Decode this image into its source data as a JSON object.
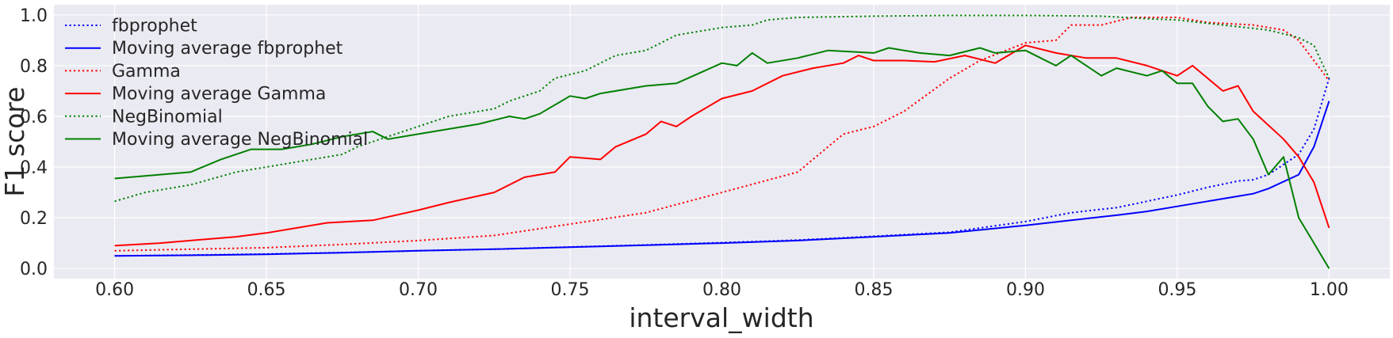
{
  "chart_data": {
    "type": "line",
    "title": "",
    "xlabel": "interval_width",
    "ylabel": "F1 score",
    "xlim": [
      0.58,
      1.02
    ],
    "ylim": [
      -0.04,
      1.04
    ],
    "grid": true,
    "legend_placement": "top-left",
    "xticks": [
      0.6,
      0.65,
      0.7,
      0.75,
      0.8,
      0.85,
      0.9,
      0.95,
      1.0
    ],
    "xtick_labels": [
      "0.60",
      "0.65",
      "0.70",
      "0.75",
      "0.80",
      "0.85",
      "0.90",
      "0.95",
      "1.00"
    ],
    "yticks": [
      0.0,
      0.2,
      0.4,
      0.6,
      0.8,
      1.0
    ],
    "ytick_labels": [
      "0.0",
      "0.2",
      "0.4",
      "0.6",
      "0.8",
      "1.0"
    ],
    "colors": {
      "background": "#eaeaf2",
      "grid": "#ffffff",
      "blue": "#0000ff",
      "red": "#ff0000",
      "green": "#008000"
    },
    "series": [
      {
        "name": "fbprophet",
        "color": "#0000ff",
        "style": "dotted",
        "points": [
          [
            0.6,
            0.05
          ],
          [
            0.625,
            0.053
          ],
          [
            0.65,
            0.057
          ],
          [
            0.675,
            0.063
          ],
          [
            0.7,
            0.07
          ],
          [
            0.725,
            0.076
          ],
          [
            0.75,
            0.085
          ],
          [
            0.775,
            0.093
          ],
          [
            0.8,
            0.102
          ],
          [
            0.825,
            0.112
          ],
          [
            0.85,
            0.127
          ],
          [
            0.875,
            0.143
          ],
          [
            0.9,
            0.185
          ],
          [
            0.915,
            0.22
          ],
          [
            0.93,
            0.24
          ],
          [
            0.94,
            0.265
          ],
          [
            0.95,
            0.29
          ],
          [
            0.96,
            0.32
          ],
          [
            0.97,
            0.345
          ],
          [
            0.975,
            0.35
          ],
          [
            0.98,
            0.37
          ],
          [
            0.99,
            0.45
          ],
          [
            0.995,
            0.55
          ],
          [
            1.0,
            0.75
          ]
        ]
      },
      {
        "name": "Moving average fbprophet",
        "color": "#0000ff",
        "style": "solid",
        "points": [
          [
            0.6,
            0.05
          ],
          [
            0.625,
            0.052
          ],
          [
            0.65,
            0.056
          ],
          [
            0.675,
            0.062
          ],
          [
            0.7,
            0.07
          ],
          [
            0.725,
            0.076
          ],
          [
            0.75,
            0.084
          ],
          [
            0.775,
            0.092
          ],
          [
            0.8,
            0.1
          ],
          [
            0.825,
            0.11
          ],
          [
            0.85,
            0.125
          ],
          [
            0.875,
            0.14
          ],
          [
            0.9,
            0.17
          ],
          [
            0.915,
            0.19
          ],
          [
            0.93,
            0.21
          ],
          [
            0.94,
            0.225
          ],
          [
            0.95,
            0.245
          ],
          [
            0.96,
            0.265
          ],
          [
            0.97,
            0.285
          ],
          [
            0.975,
            0.295
          ],
          [
            0.98,
            0.315
          ],
          [
            0.99,
            0.37
          ],
          [
            0.995,
            0.48
          ],
          [
            1.0,
            0.66
          ]
        ]
      },
      {
        "name": "Gamma",
        "color": "#ff0000",
        "style": "dotted",
        "points": [
          [
            0.6,
            0.07
          ],
          [
            0.625,
            0.076
          ],
          [
            0.65,
            0.082
          ],
          [
            0.675,
            0.095
          ],
          [
            0.7,
            0.11
          ],
          [
            0.725,
            0.13
          ],
          [
            0.75,
            0.175
          ],
          [
            0.775,
            0.22
          ],
          [
            0.8,
            0.3
          ],
          [
            0.825,
            0.38
          ],
          [
            0.84,
            0.53
          ],
          [
            0.85,
            0.56
          ],
          [
            0.86,
            0.62
          ],
          [
            0.875,
            0.75
          ],
          [
            0.885,
            0.82
          ],
          [
            0.9,
            0.89
          ],
          [
            0.91,
            0.9
          ],
          [
            0.915,
            0.96
          ],
          [
            0.925,
            0.96
          ],
          [
            0.935,
            0.99
          ],
          [
            0.95,
            0.99
          ],
          [
            0.96,
            0.97
          ],
          [
            0.975,
            0.96
          ],
          [
            0.985,
            0.94
          ],
          [
            0.99,
            0.9
          ],
          [
            1.0,
            0.74
          ]
        ]
      },
      {
        "name": "Moving average Gamma",
        "color": "#ff0000",
        "style": "solid",
        "points": [
          [
            0.6,
            0.09
          ],
          [
            0.615,
            0.1
          ],
          [
            0.625,
            0.11
          ],
          [
            0.64,
            0.125
          ],
          [
            0.65,
            0.14
          ],
          [
            0.66,
            0.16
          ],
          [
            0.67,
            0.18
          ],
          [
            0.685,
            0.19
          ],
          [
            0.7,
            0.23
          ],
          [
            0.71,
            0.26
          ],
          [
            0.725,
            0.3
          ],
          [
            0.735,
            0.36
          ],
          [
            0.745,
            0.38
          ],
          [
            0.75,
            0.44
          ],
          [
            0.76,
            0.43
          ],
          [
            0.765,
            0.48
          ],
          [
            0.775,
            0.53
          ],
          [
            0.78,
            0.58
          ],
          [
            0.785,
            0.56
          ],
          [
            0.79,
            0.6
          ],
          [
            0.8,
            0.67
          ],
          [
            0.81,
            0.7
          ],
          [
            0.82,
            0.76
          ],
          [
            0.83,
            0.79
          ],
          [
            0.84,
            0.81
          ],
          [
            0.845,
            0.84
          ],
          [
            0.85,
            0.82
          ],
          [
            0.86,
            0.82
          ],
          [
            0.87,
            0.815
          ],
          [
            0.88,
            0.84
          ],
          [
            0.89,
            0.81
          ],
          [
            0.9,
            0.88
          ],
          [
            0.91,
            0.85
          ],
          [
            0.92,
            0.83
          ],
          [
            0.93,
            0.83
          ],
          [
            0.94,
            0.8
          ],
          [
            0.95,
            0.76
          ],
          [
            0.955,
            0.8
          ],
          [
            0.965,
            0.7
          ],
          [
            0.97,
            0.72
          ],
          [
            0.975,
            0.62
          ],
          [
            0.985,
            0.51
          ],
          [
            0.99,
            0.44
          ],
          [
            0.995,
            0.34
          ],
          [
            1.0,
            0.16
          ]
        ]
      },
      {
        "name": "NegBinomial",
        "color": "#008000",
        "style": "dotted",
        "points": [
          [
            0.6,
            0.265
          ],
          [
            0.61,
            0.3
          ],
          [
            0.625,
            0.33
          ],
          [
            0.64,
            0.38
          ],
          [
            0.65,
            0.4
          ],
          [
            0.66,
            0.42
          ],
          [
            0.675,
            0.45
          ],
          [
            0.68,
            0.48
          ],
          [
            0.69,
            0.52
          ],
          [
            0.7,
            0.56
          ],
          [
            0.71,
            0.6
          ],
          [
            0.725,
            0.63
          ],
          [
            0.73,
            0.66
          ],
          [
            0.74,
            0.7
          ],
          [
            0.745,
            0.75
          ],
          [
            0.755,
            0.78
          ],
          [
            0.765,
            0.84
          ],
          [
            0.775,
            0.86
          ],
          [
            0.785,
            0.92
          ],
          [
            0.8,
            0.95
          ],
          [
            0.81,
            0.96
          ],
          [
            0.815,
            0.98
          ],
          [
            0.825,
            0.99
          ],
          [
            0.85,
            0.995
          ],
          [
            0.875,
            0.998
          ],
          [
            0.9,
            0.998
          ],
          [
            0.925,
            0.995
          ],
          [
            0.94,
            0.985
          ],
          [
            0.95,
            0.98
          ],
          [
            0.965,
            0.96
          ],
          [
            0.98,
            0.94
          ],
          [
            0.99,
            0.91
          ],
          [
            0.995,
            0.88
          ],
          [
            1.0,
            0.75
          ]
        ]
      },
      {
        "name": "Moving average NegBinomial",
        "color": "#008000",
        "style": "solid",
        "points": [
          [
            0.6,
            0.355
          ],
          [
            0.625,
            0.38
          ],
          [
            0.635,
            0.43
          ],
          [
            0.645,
            0.47
          ],
          [
            0.655,
            0.47
          ],
          [
            0.665,
            0.49
          ],
          [
            0.675,
            0.52
          ],
          [
            0.685,
            0.54
          ],
          [
            0.69,
            0.51
          ],
          [
            0.7,
            0.53
          ],
          [
            0.71,
            0.55
          ],
          [
            0.72,
            0.57
          ],
          [
            0.73,
            0.6
          ],
          [
            0.735,
            0.59
          ],
          [
            0.74,
            0.61
          ],
          [
            0.75,
            0.68
          ],
          [
            0.755,
            0.67
          ],
          [
            0.76,
            0.69
          ],
          [
            0.775,
            0.72
          ],
          [
            0.785,
            0.73
          ],
          [
            0.8,
            0.81
          ],
          [
            0.805,
            0.8
          ],
          [
            0.81,
            0.85
          ],
          [
            0.815,
            0.81
          ],
          [
            0.825,
            0.83
          ],
          [
            0.835,
            0.86
          ],
          [
            0.85,
            0.85
          ],
          [
            0.855,
            0.87
          ],
          [
            0.865,
            0.85
          ],
          [
            0.875,
            0.84
          ],
          [
            0.885,
            0.87
          ],
          [
            0.89,
            0.85
          ],
          [
            0.9,
            0.86
          ],
          [
            0.905,
            0.83
          ],
          [
            0.91,
            0.8
          ],
          [
            0.915,
            0.84
          ],
          [
            0.925,
            0.76
          ],
          [
            0.93,
            0.79
          ],
          [
            0.94,
            0.76
          ],
          [
            0.945,
            0.78
          ],
          [
            0.95,
            0.73
          ],
          [
            0.955,
            0.73
          ],
          [
            0.96,
            0.64
          ],
          [
            0.965,
            0.58
          ],
          [
            0.97,
            0.59
          ],
          [
            0.975,
            0.51
          ],
          [
            0.98,
            0.37
          ],
          [
            0.985,
            0.44
          ],
          [
            0.99,
            0.2
          ],
          [
            0.995,
            0.1
          ],
          [
            1.0,
            0.0
          ]
        ]
      }
    ]
  }
}
